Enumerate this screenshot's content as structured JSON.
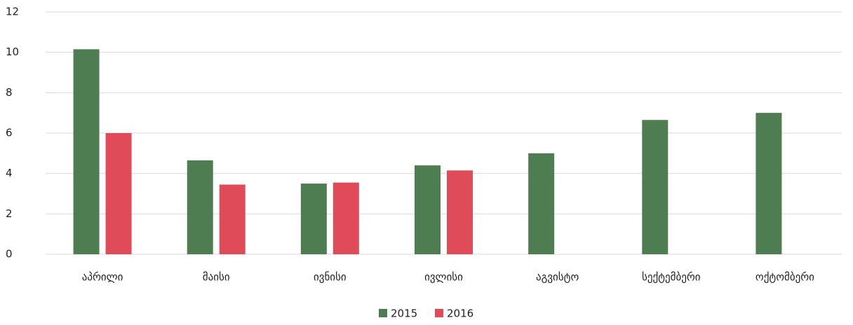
{
  "chart_data": {
    "type": "bar",
    "categories": [
      "აპრილი",
      "მაისი",
      "ივნისი",
      "ივლისი",
      "აგვისტო",
      "სექტემბერი",
      "ოქტომბერი"
    ],
    "series": [
      {
        "name": "2015",
        "color": "#4e7d52",
        "values": [
          10.15,
          4.65,
          3.5,
          4.4,
          5.0,
          6.65,
          7.0
        ]
      },
      {
        "name": "2016",
        "color": "#e04b5a",
        "values": [
          6.0,
          3.45,
          3.55,
          4.15,
          null,
          null,
          null
        ]
      }
    ],
    "ylim": [
      0,
      12
    ],
    "yticks": [
      0,
      2,
      4,
      6,
      8,
      10,
      12
    ],
    "grid": true,
    "legend": "bottom"
  }
}
